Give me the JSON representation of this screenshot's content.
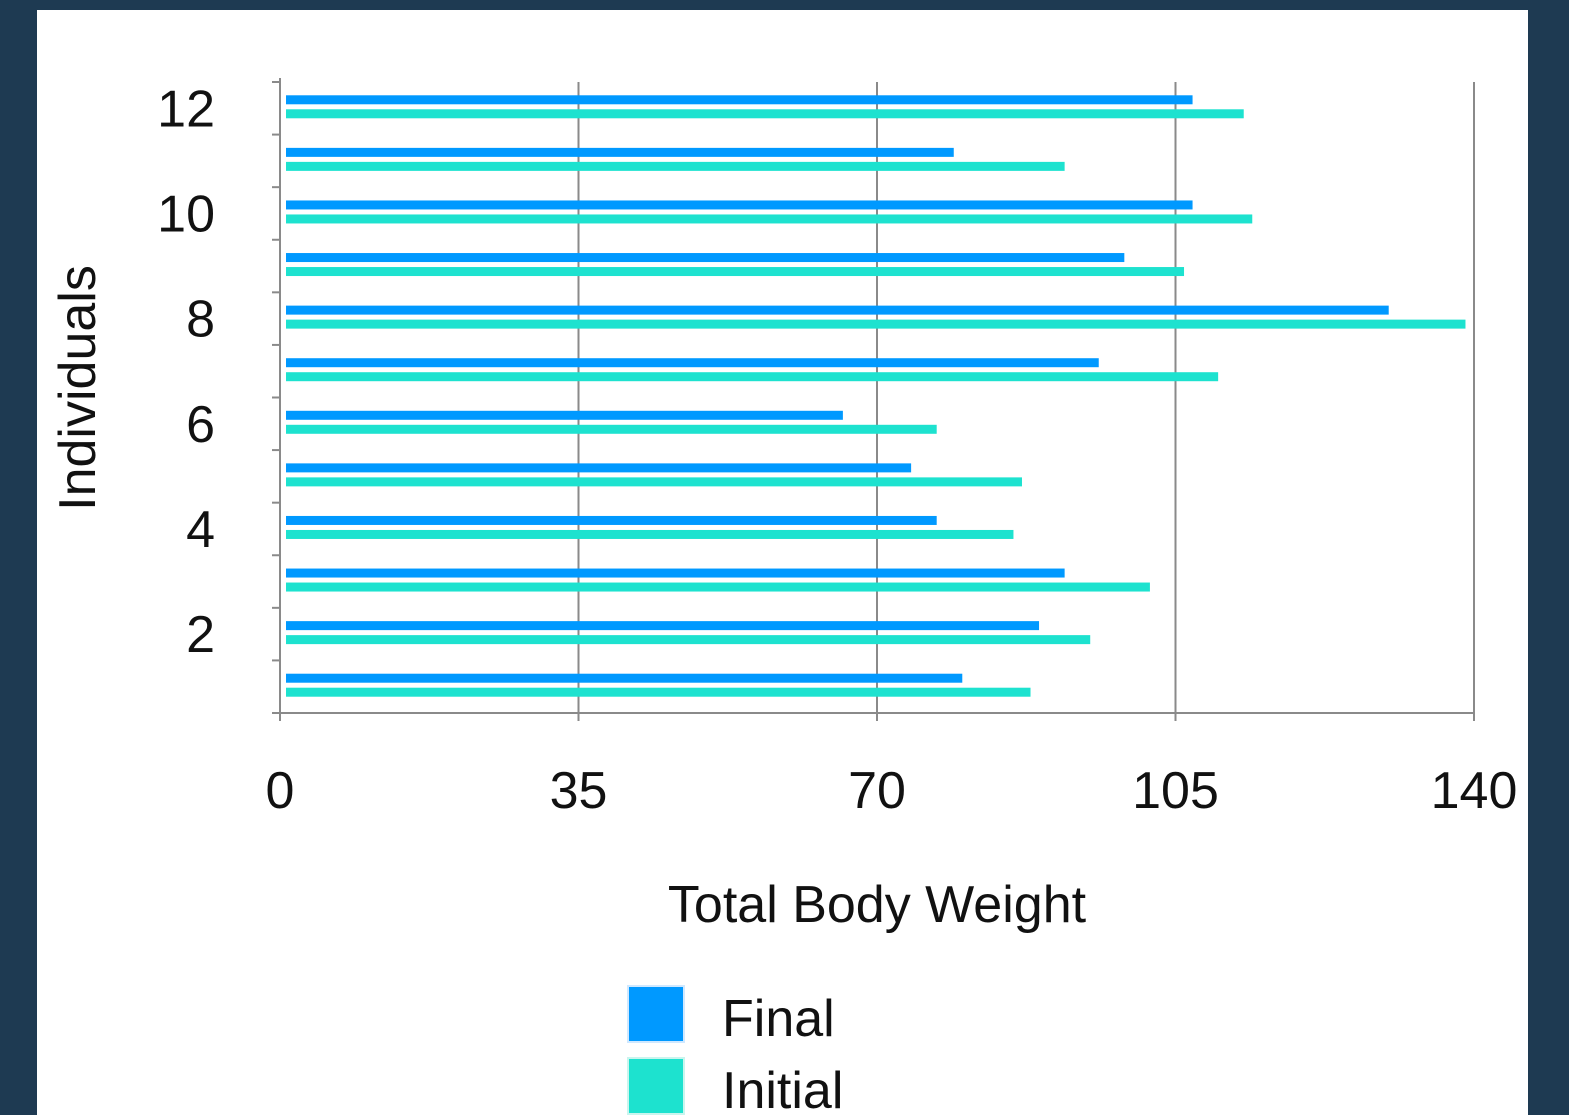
{
  "chart_data": {
    "type": "bar",
    "orientation": "horizontal",
    "xlabel": "Total Body Weight",
    "ylabel": "Individuals",
    "xlim": [
      0,
      140
    ],
    "x_ticks": [
      "0",
      "35",
      "70",
      "105",
      "140"
    ],
    "ylim": [
      0,
      12
    ],
    "y_ticks": [
      "2",
      "4",
      "6",
      "8",
      "10",
      "12"
    ],
    "categories": [
      1,
      2,
      3,
      4,
      5,
      6,
      7,
      8,
      9,
      10,
      11,
      12
    ],
    "series": [
      {
        "name": "Final",
        "color": "#0099ff",
        "values": [
          80,
          89,
          92,
          77,
          74,
          66,
          96,
          130,
          99,
          107,
          79,
          107
        ]
      },
      {
        "name": "Initial",
        "color": "#1de2cf",
        "values": [
          88,
          95,
          102,
          86,
          87,
          77,
          110,
          139,
          106,
          114,
          92,
          113
        ]
      }
    ],
    "grid": "vertical",
    "legend_position": "bottom-center"
  }
}
